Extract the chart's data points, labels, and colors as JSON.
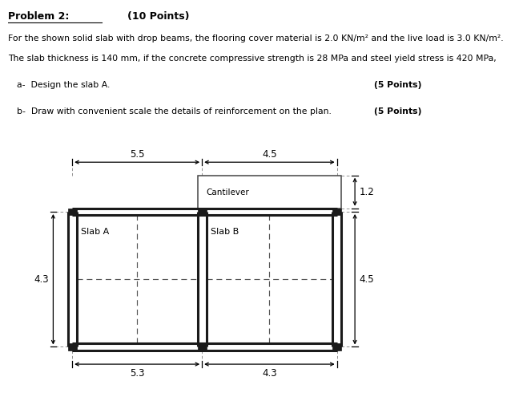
{
  "title_line1": "Problem 2:",
  "title_points": "(10 Points)",
  "desc_line1": "For the shown solid slab with drop beams, the flooring cover material is 2.0 KN/m² and the live load is 3.0 KN/m².",
  "desc_line2": "The slab thickness is 140 mm, if the concrete compressive strength is 28 MPa and steel yield stress is 420 MPa,",
  "item_a": "a-  Design the slab A.",
  "item_a_pts": "(5 Points)",
  "item_b": "b-  Draw with convenient scale the details of reinforcement on the plan.",
  "item_b_pts": "(5 Points)",
  "dim_top_left": "5.5",
  "dim_top_right": "4.5",
  "dim_bottom_left": "5.3",
  "dim_bottom_right": "4.3",
  "dim_left": "4.3",
  "dim_right": "4.5",
  "dim_cantilever": "1.2",
  "label_cantilever": "Cantilever",
  "label_slab_a": "Slab A",
  "label_slab_b": "Slab B",
  "bg_color": "#ffffff",
  "beam_color": "#1a1a1a",
  "text_color": "#000000",
  "dashed_color": "#555555",
  "ext_dash_color": "#888888"
}
